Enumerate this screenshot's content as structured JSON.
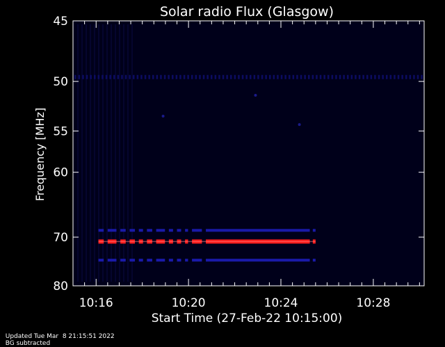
{
  "chart_data": {
    "type": "heatmap",
    "title": "Solar radio Flux (Glasgow)",
    "xlabel": "Start Time (27-Feb-22 10:15:00)",
    "ylabel": "Frequency [MHz]",
    "x_ticks": [
      "10:16",
      "10:20",
      "10:24",
      "10:28"
    ],
    "x_tick_minutes": [
      1,
      5,
      9,
      13
    ],
    "xlim_minutes": [
      0,
      15.2
    ],
    "y_ticks": [
      45,
      50,
      55,
      60,
      70,
      80
    ],
    "ylim": [
      45,
      80
    ],
    "y_scale": "reciprocal",
    "colormap": "dark-blue-to-red",
    "colors": {
      "background": "#000000",
      "plot_bg": "#00001a",
      "axes": "#ffffff",
      "strong": "#ff1a1a",
      "medium": "#1a1aa8",
      "weak": "#0c0c60"
    },
    "features": [
      {
        "name": "",
        "freq_mhz": 49.6,
        "start_min": 0.0,
        "end_min": 15.2,
        "intensity": "weak",
        "pattern": "dashed"
      },
      {
        "name": "",
        "freq_mhz": 68.8,
        "start_min": 1.1,
        "end_min": 10.5,
        "intensity": "medium",
        "pattern": "broken"
      },
      {
        "name": "",
        "freq_mhz": 70.8,
        "start_min": 1.1,
        "end_min": 10.5,
        "intensity": "strong",
        "pattern": "broken"
      },
      {
        "name": "",
        "freq_mhz": 74.4,
        "start_min": 1.1,
        "end_min": 10.5,
        "intensity": "medium",
        "pattern": "broken"
      }
    ]
  },
  "footer": {
    "updated": "Updated Tue Mar  8 21:15:51 2022",
    "note": "BG subtracted"
  }
}
